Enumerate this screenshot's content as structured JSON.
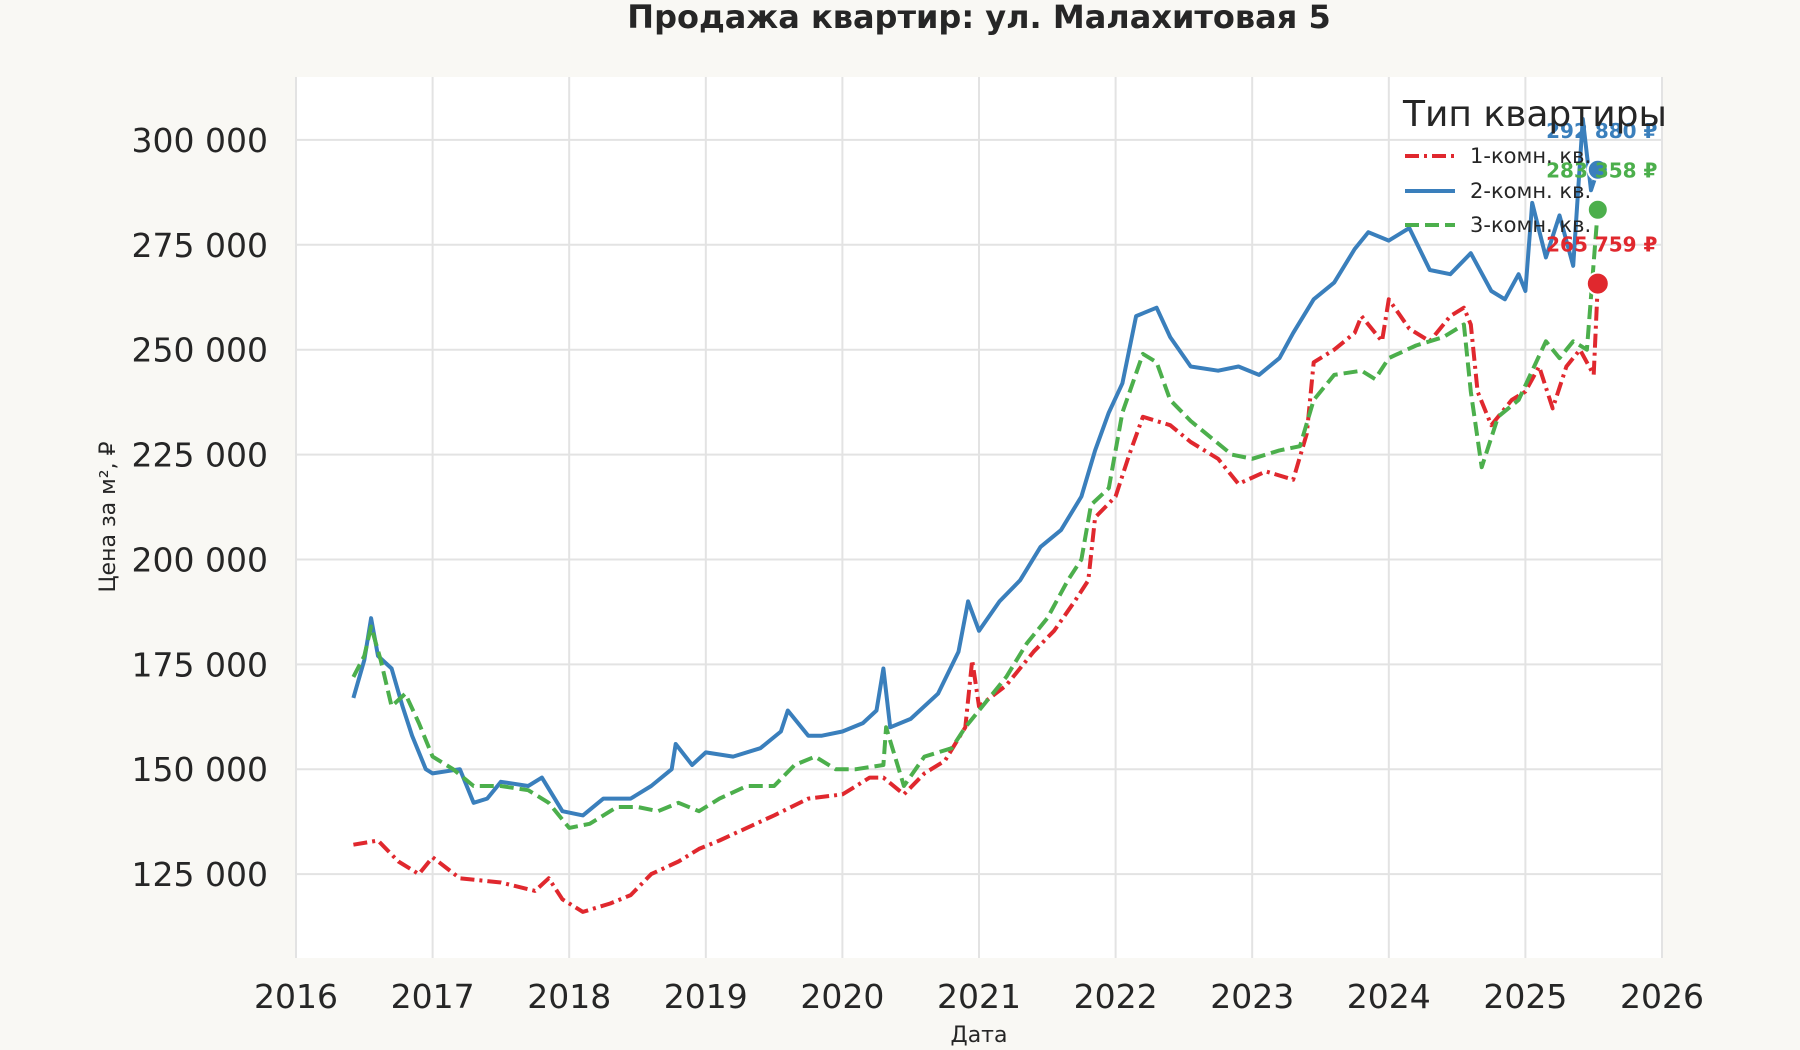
{
  "chart_data": {
    "type": "line",
    "title": "Продажа квартир: ул. Малахитовая 5",
    "xlabel": "Дата",
    "ylabel": "Цена за м², ₽",
    "xlim": [
      2016.0,
      2026.0
    ],
    "ylim": [
      105000,
      315000
    ],
    "x_ticks": [
      "2016",
      "2017",
      "2018",
      "2019",
      "2020",
      "2021",
      "2022",
      "2023",
      "2024",
      "2025",
      "2026"
    ],
    "y_ticks": [
      "125 000",
      "150 000",
      "175 000",
      "200 000",
      "225 000",
      "250 000",
      "275 000",
      "300 000"
    ],
    "grid": true,
    "legend": {
      "title": "Тип квартиры",
      "placement": "top-right"
    },
    "series": [
      {
        "name": "1-комн. кв.",
        "color": "#e0282e",
        "dash": "dash-dot",
        "end_label": "265 759 ₽",
        "end_value": 265759,
        "points": [
          [
            2016.42,
            132000
          ],
          [
            2016.6,
            133000
          ],
          [
            2016.75,
            128000
          ],
          [
            2016.9,
            125000
          ],
          [
            2017.0,
            129000
          ],
          [
            2017.2,
            124000
          ],
          [
            2017.5,
            123000
          ],
          [
            2017.75,
            121000
          ],
          [
            2017.85,
            124000
          ],
          [
            2017.95,
            119000
          ],
          [
            2018.1,
            116000
          ],
          [
            2018.3,
            118000
          ],
          [
            2018.45,
            120000
          ],
          [
            2018.6,
            125000
          ],
          [
            2018.8,
            128000
          ],
          [
            2018.95,
            131000
          ],
          [
            2019.1,
            133000
          ],
          [
            2019.3,
            136000
          ],
          [
            2019.5,
            139000
          ],
          [
            2019.75,
            143000
          ],
          [
            2020.0,
            144000
          ],
          [
            2020.2,
            148000
          ],
          [
            2020.3,
            148000
          ],
          [
            2020.45,
            144000
          ],
          [
            2020.6,
            149000
          ],
          [
            2020.75,
            152000
          ],
          [
            2020.9,
            160000
          ],
          [
            2020.95,
            176000
          ],
          [
            2021.0,
            165000
          ],
          [
            2021.2,
            170000
          ],
          [
            2021.4,
            178000
          ],
          [
            2021.55,
            183000
          ],
          [
            2021.7,
            190000
          ],
          [
            2021.8,
            195000
          ],
          [
            2021.85,
            210000
          ],
          [
            2022.0,
            215000
          ],
          [
            2022.1,
            225000
          ],
          [
            2022.2,
            234000
          ],
          [
            2022.4,
            232000
          ],
          [
            2022.55,
            228000
          ],
          [
            2022.75,
            224000
          ],
          [
            2022.9,
            218000
          ],
          [
            2023.1,
            221000
          ],
          [
            2023.3,
            219000
          ],
          [
            2023.4,
            230000
          ],
          [
            2023.45,
            247000
          ],
          [
            2023.6,
            250000
          ],
          [
            2023.75,
            254000
          ],
          [
            2023.8,
            258000
          ],
          [
            2023.95,
            252000
          ],
          [
            2024.0,
            262000
          ],
          [
            2024.15,
            255000
          ],
          [
            2024.3,
            252000
          ],
          [
            2024.45,
            258000
          ],
          [
            2024.55,
            260000
          ],
          [
            2024.6,
            256000
          ],
          [
            2024.65,
            240000
          ],
          [
            2024.75,
            232000
          ],
          [
            2024.9,
            238000
          ],
          [
            2025.0,
            240000
          ],
          [
            2025.1,
            246000
          ],
          [
            2025.2,
            236000
          ],
          [
            2025.3,
            246000
          ],
          [
            2025.4,
            250000
          ],
          [
            2025.5,
            244000
          ],
          [
            2025.53,
            265759
          ]
        ]
      },
      {
        "name": "2-комн. кв.",
        "color": "#3a7fbc",
        "dash": "solid",
        "end_label": "292 880 ₽",
        "end_value": 292880,
        "points": [
          [
            2016.42,
            167000
          ],
          [
            2016.5,
            176000
          ],
          [
            2016.55,
            186000
          ],
          [
            2016.6,
            177000
          ],
          [
            2016.7,
            174000
          ],
          [
            2016.78,
            165000
          ],
          [
            2016.85,
            158000
          ],
          [
            2016.95,
            150000
          ],
          [
            2017.0,
            149000
          ],
          [
            2017.2,
            150000
          ],
          [
            2017.3,
            142000
          ],
          [
            2017.4,
            143000
          ],
          [
            2017.5,
            147000
          ],
          [
            2017.7,
            146000
          ],
          [
            2017.8,
            148000
          ],
          [
            2017.95,
            140000
          ],
          [
            2018.1,
            139000
          ],
          [
            2018.25,
            143000
          ],
          [
            2018.45,
            143000
          ],
          [
            2018.6,
            146000
          ],
          [
            2018.75,
            150000
          ],
          [
            2018.78,
            156000
          ],
          [
            2018.9,
            151000
          ],
          [
            2019.0,
            154000
          ],
          [
            2019.2,
            153000
          ],
          [
            2019.4,
            155000
          ],
          [
            2019.55,
            159000
          ],
          [
            2019.6,
            164000
          ],
          [
            2019.75,
            158000
          ],
          [
            2019.85,
            158000
          ],
          [
            2020.0,
            159000
          ],
          [
            2020.15,
            161000
          ],
          [
            2020.25,
            164000
          ],
          [
            2020.3,
            174000
          ],
          [
            2020.35,
            160000
          ],
          [
            2020.5,
            162000
          ],
          [
            2020.7,
            168000
          ],
          [
            2020.85,
            178000
          ],
          [
            2020.92,
            190000
          ],
          [
            2021.0,
            183000
          ],
          [
            2021.15,
            190000
          ],
          [
            2021.3,
            195000
          ],
          [
            2021.45,
            203000
          ],
          [
            2021.6,
            207000
          ],
          [
            2021.75,
            215000
          ],
          [
            2021.85,
            226000
          ],
          [
            2021.95,
            235000
          ],
          [
            2022.05,
            242000
          ],
          [
            2022.15,
            258000
          ],
          [
            2022.3,
            260000
          ],
          [
            2022.4,
            253000
          ],
          [
            2022.55,
            246000
          ],
          [
            2022.75,
            245000
          ],
          [
            2022.9,
            246000
          ],
          [
            2023.05,
            244000
          ],
          [
            2023.2,
            248000
          ],
          [
            2023.3,
            254000
          ],
          [
            2023.45,
            262000
          ],
          [
            2023.6,
            266000
          ],
          [
            2023.75,
            274000
          ],
          [
            2023.85,
            278000
          ],
          [
            2024.0,
            276000
          ],
          [
            2024.15,
            279000
          ],
          [
            2024.3,
            269000
          ],
          [
            2024.45,
            268000
          ],
          [
            2024.6,
            273000
          ],
          [
            2024.75,
            264000
          ],
          [
            2024.85,
            262000
          ],
          [
            2024.95,
            268000
          ],
          [
            2025.0,
            264000
          ],
          [
            2025.05,
            285000
          ],
          [
            2025.15,
            272000
          ],
          [
            2025.25,
            282000
          ],
          [
            2025.35,
            270000
          ],
          [
            2025.42,
            305000
          ],
          [
            2025.48,
            288000
          ],
          [
            2025.53,
            292880
          ]
        ]
      },
      {
        "name": "3-комн. кв.",
        "color": "#4caf4c",
        "dash": "dashed",
        "end_label": "283 358 ₽",
        "end_value": 283358,
        "points": [
          [
            2016.42,
            172000
          ],
          [
            2016.5,
            177000
          ],
          [
            2016.55,
            184000
          ],
          [
            2016.62,
            176000
          ],
          [
            2016.7,
            165000
          ],
          [
            2016.8,
            168000
          ],
          [
            2016.9,
            161000
          ],
          [
            2017.0,
            153000
          ],
          [
            2017.15,
            150000
          ],
          [
            2017.3,
            146000
          ],
          [
            2017.5,
            146000
          ],
          [
            2017.7,
            145000
          ],
          [
            2017.85,
            142000
          ],
          [
            2018.0,
            136000
          ],
          [
            2018.15,
            137000
          ],
          [
            2018.35,
            141000
          ],
          [
            2018.5,
            141000
          ],
          [
            2018.65,
            140000
          ],
          [
            2018.8,
            142000
          ],
          [
            2018.95,
            140000
          ],
          [
            2019.1,
            143000
          ],
          [
            2019.3,
            146000
          ],
          [
            2019.5,
            146000
          ],
          [
            2019.65,
            151000
          ],
          [
            2019.8,
            153000
          ],
          [
            2019.95,
            150000
          ],
          [
            2020.1,
            150000
          ],
          [
            2020.3,
            151000
          ],
          [
            2020.32,
            160000
          ],
          [
            2020.45,
            146000
          ],
          [
            2020.6,
            153000
          ],
          [
            2020.8,
            155000
          ],
          [
            2020.9,
            160000
          ],
          [
            2021.0,
            164000
          ],
          [
            2021.2,
            172000
          ],
          [
            2021.35,
            180000
          ],
          [
            2021.5,
            186000
          ],
          [
            2021.65,
            195000
          ],
          [
            2021.75,
            200000
          ],
          [
            2021.82,
            213000
          ],
          [
            2021.95,
            217000
          ],
          [
            2022.05,
            235000
          ],
          [
            2022.2,
            249000
          ],
          [
            2022.3,
            247000
          ],
          [
            2022.4,
            238000
          ],
          [
            2022.55,
            233000
          ],
          [
            2022.7,
            229000
          ],
          [
            2022.85,
            225000
          ],
          [
            2023.0,
            224000
          ],
          [
            2023.2,
            226000
          ],
          [
            2023.35,
            227000
          ],
          [
            2023.45,
            238000
          ],
          [
            2023.6,
            244000
          ],
          [
            2023.8,
            245000
          ],
          [
            2023.9,
            243000
          ],
          [
            2024.0,
            248000
          ],
          [
            2024.2,
            251000
          ],
          [
            2024.4,
            253000
          ],
          [
            2024.55,
            256000
          ],
          [
            2024.6,
            240000
          ],
          [
            2024.68,
            222000
          ],
          [
            2024.8,
            234000
          ],
          [
            2024.95,
            238000
          ],
          [
            2025.05,
            245000
          ],
          [
            2025.15,
            252000
          ],
          [
            2025.25,
            248000
          ],
          [
            2025.35,
            252000
          ],
          [
            2025.45,
            250000
          ],
          [
            2025.53,
            283358
          ]
        ]
      }
    ]
  }
}
